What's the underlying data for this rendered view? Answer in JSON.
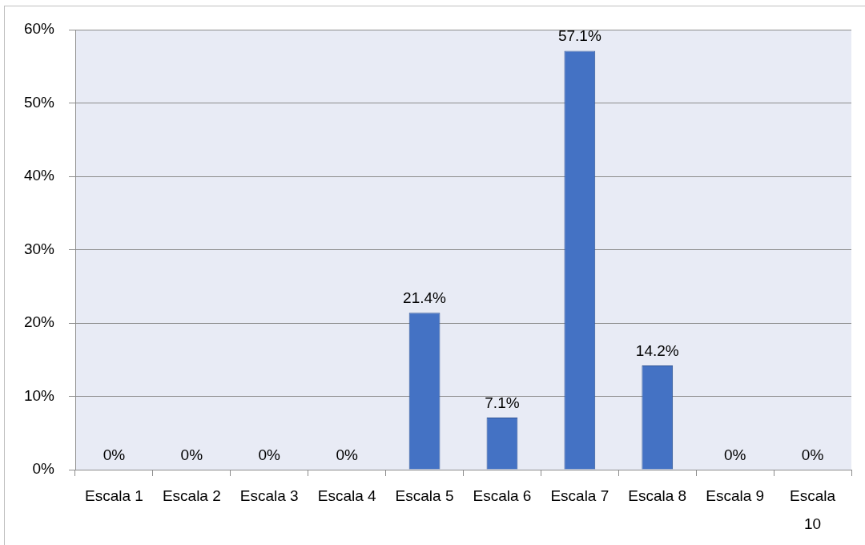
{
  "chart_data": {
    "type": "bar",
    "categories": [
      "Escala 1",
      "Escala 2",
      "Escala 3",
      "Escala 4",
      "Escala 5",
      "Escala 6",
      "Escala 7",
      "Escala 8",
      "Escala 9",
      "Escala 10"
    ],
    "values": [
      0,
      0,
      0,
      0,
      21.4,
      7.1,
      57.1,
      14.2,
      0,
      0
    ],
    "value_labels": [
      "0%",
      "0%",
      "0%",
      "0%",
      "21.4%",
      "7.1%",
      "57.1%",
      "14.2%",
      "0%",
      "0%"
    ],
    "color": "#4472c4",
    "ylim": [
      0,
      60
    ],
    "yticks": [
      {
        "value": 0,
        "label": "0%"
      },
      {
        "value": 10,
        "label": "10%"
      },
      {
        "value": 20,
        "label": "20%"
      },
      {
        "value": 30,
        "label": "30%"
      },
      {
        "value": 40,
        "label": "40%"
      },
      {
        "value": 50,
        "label": "50%"
      },
      {
        "value": 60,
        "label": "60%"
      }
    ],
    "grid": "y"
  }
}
